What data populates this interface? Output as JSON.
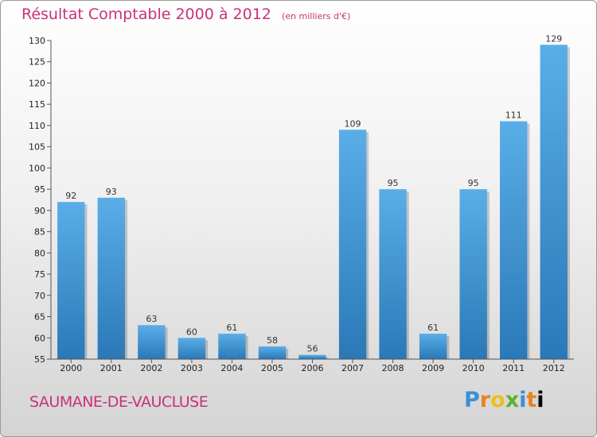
{
  "chart_data": {
    "type": "bar",
    "title": "Résultat Comptable 2000 à 2012",
    "unit_note": "(en milliers d'€)",
    "categories": [
      "2000",
      "2001",
      "2002",
      "2003",
      "2004",
      "2005",
      "2006",
      "2007",
      "2008",
      "2009",
      "2010",
      "2011",
      "2012"
    ],
    "values": [
      92,
      93,
      63,
      60,
      61,
      58,
      56,
      109,
      95,
      61,
      95,
      111,
      129
    ],
    "ylim": [
      55,
      130
    ],
    "yticks": [
      55,
      60,
      65,
      70,
      75,
      80,
      85,
      90,
      95,
      100,
      105,
      110,
      115,
      120,
      125,
      130
    ],
    "grid": false,
    "bar_color": "#3a8fd4"
  },
  "location": "SAUMANE-DE-VAUCLUSE",
  "brand": {
    "letters": [
      "P",
      "r",
      "o",
      "x",
      "i",
      "t",
      "i"
    ]
  }
}
